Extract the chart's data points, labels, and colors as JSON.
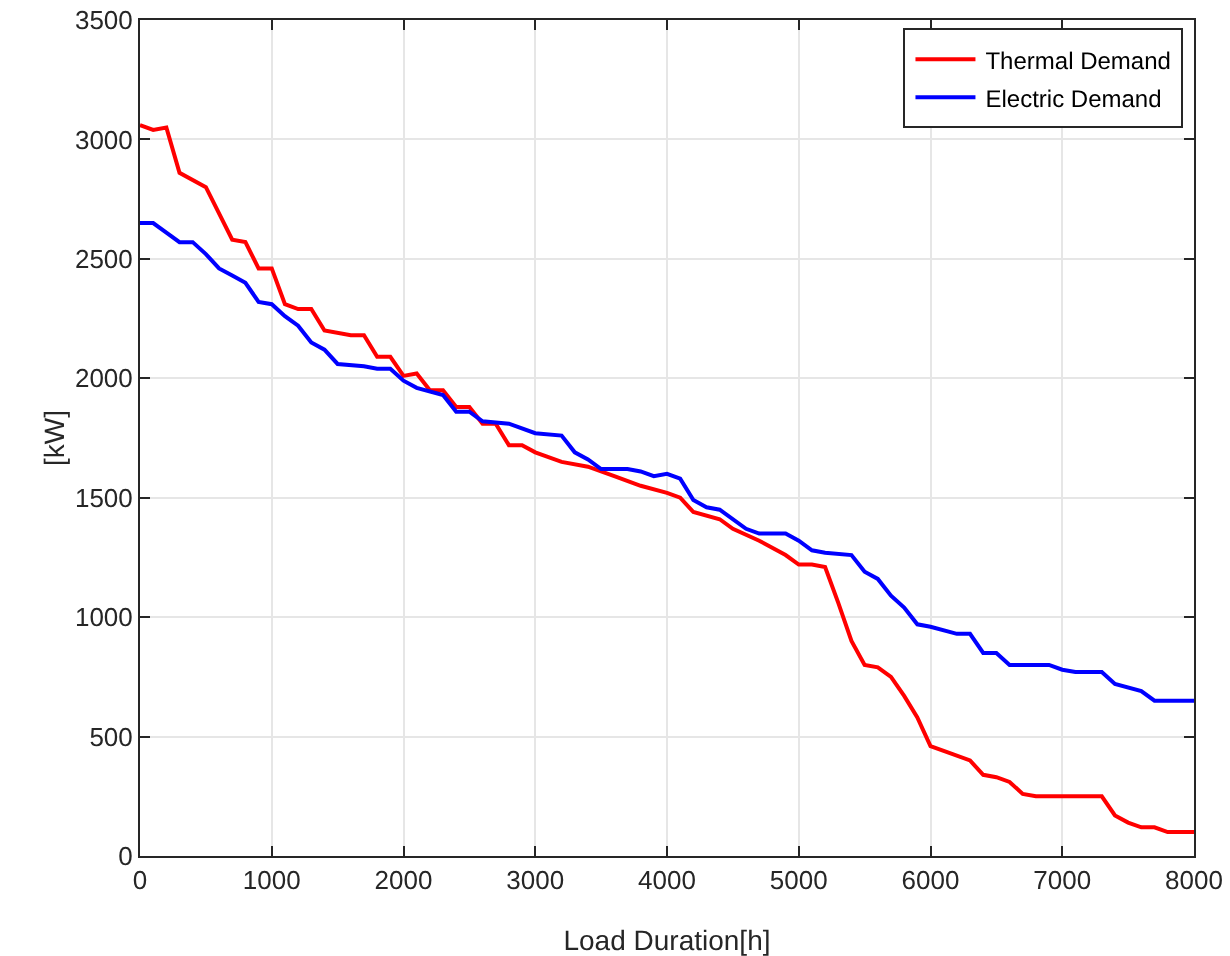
{
  "chart_data": {
    "type": "line",
    "xlabel": "Load Duration[h]",
    "ylabel": "[kW]",
    "xlim": [
      0,
      8000
    ],
    "xticks": [
      0,
      1000,
      2000,
      3000,
      4000,
      5000,
      6000,
      7000,
      8000
    ],
    "ylim": [
      0,
      3500
    ],
    "yticks": [
      0,
      500,
      1000,
      1500,
      2000,
      2500,
      3000,
      3500
    ],
    "grid": true,
    "legend": "top right",
    "marker": "none",
    "line_style": "solid",
    "series": [
      {
        "name": "Thermal Demand",
        "color": "#ff0000",
        "x": [
          0,
          100,
          200,
          300,
          500,
          700,
          800,
          900,
          1000,
          1100,
          1200,
          1300,
          1400,
          1600,
          1700,
          1800,
          1900,
          2000,
          2100,
          2200,
          2300,
          2400,
          2500,
          2600,
          2700,
          2800,
          2900,
          3000,
          3200,
          3400,
          3600,
          3800,
          4000,
          4100,
          4200,
          4400,
          4500,
          4700,
          4900,
          5000,
          5100,
          5200,
          5300,
          5400,
          5500,
          5600,
          5700,
          5800,
          5900,
          6000,
          6100,
          6300,
          6400,
          6500,
          6600,
          6700,
          6800,
          7000,
          7100,
          7300,
          7400,
          7500,
          7600,
          7700,
          7800,
          8000
        ],
        "values": [
          3060,
          3040,
          3050,
          2860,
          2800,
          2580,
          2570,
          2460,
          2460,
          2310,
          2290,
          2290,
          2200,
          2180,
          2180,
          2090,
          2090,
          2010,
          2020,
          1950,
          1950,
          1880,
          1880,
          1810,
          1810,
          1720,
          1720,
          1690,
          1650,
          1630,
          1590,
          1550,
          1520,
          1500,
          1440,
          1410,
          1370,
          1320,
          1260,
          1220,
          1220,
          1210,
          1060,
          900,
          800,
          790,
          750,
          670,
          580,
          460,
          440,
          400,
          340,
          330,
          310,
          260,
          250,
          250,
          250,
          250,
          170,
          140,
          120,
          120,
          100,
          100
        ]
      },
      {
        "name": "Electric Demand",
        "color": "#0000ff",
        "x": [
          0,
          100,
          200,
          300,
          400,
          500,
          600,
          700,
          800,
          900,
          1000,
          1100,
          1200,
          1300,
          1400,
          1500,
          1700,
          1800,
          1900,
          2000,
          2100,
          2300,
          2400,
          2500,
          2600,
          2800,
          3000,
          3200,
          3300,
          3400,
          3500,
          3700,
          3800,
          3900,
          4000,
          4100,
          4200,
          4300,
          4400,
          4600,
          4700,
          4900,
          5000,
          5100,
          5200,
          5400,
          5500,
          5600,
          5700,
          5800,
          5900,
          6000,
          6200,
          6300,
          6400,
          6500,
          6600,
          6900,
          7000,
          7100,
          7300,
          7400,
          7600,
          7700,
          8000
        ],
        "values": [
          2650,
          2650,
          2610,
          2570,
          2570,
          2520,
          2460,
          2430,
          2400,
          2320,
          2310,
          2260,
          2220,
          2150,
          2120,
          2060,
          2050,
          2040,
          2040,
          1990,
          1960,
          1930,
          1860,
          1860,
          1820,
          1810,
          1770,
          1760,
          1690,
          1660,
          1620,
          1620,
          1610,
          1590,
          1600,
          1580,
          1490,
          1460,
          1450,
          1370,
          1350,
          1350,
          1320,
          1280,
          1270,
          1260,
          1190,
          1160,
          1090,
          1040,
          970,
          960,
          930,
          930,
          850,
          850,
          800,
          800,
          780,
          770,
          770,
          720,
          690,
          650,
          650
        ]
      }
    ]
  }
}
